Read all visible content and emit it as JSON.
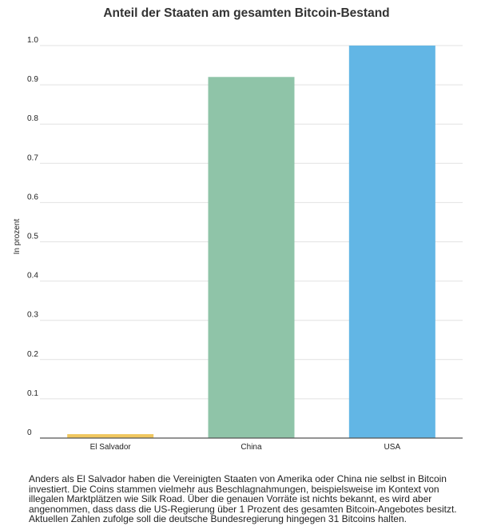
{
  "chart_data": {
    "type": "bar",
    "title": "Anteil der Staaten am gesamten Bitcoin-Bestand",
    "ylabel": "In prozent",
    "xlabel": "",
    "categories": [
      "El Salvador",
      "China",
      "USA"
    ],
    "values": [
      0.01,
      0.92,
      1.0
    ],
    "colors": [
      "#f0c75e",
      "#8fc4a8",
      "#62b6e5"
    ],
    "ylim": [
      0,
      1.0
    ],
    "yticks": [
      "0",
      "0.1",
      "0.2",
      "0.3",
      "0.4",
      "0.5",
      "0.6",
      "0.7",
      "0.8",
      "0.9",
      "1.0"
    ],
    "grid": true,
    "legend": "none"
  },
  "caption": "Anders als El Salvador haben die Vereinigten Staaten von Amerika oder China nie selbst in Bitcoin investiert. Die Coins stammen vielmehr aus Beschlagnahmungen, beispielsweise im Kontext von illegalen Marktplätzen wie Silk Road. Über die genauen Vorräte ist nichts bekannt, es wird aber angenommen, dass dass die US-Regierung über 1 Prozent des gesamten Bitcoin-Angebotes besitzt. Aktuellen Zahlen zufolge soll die deutsche Bundesregierung hingegen 31 Bitcoins halten."
}
